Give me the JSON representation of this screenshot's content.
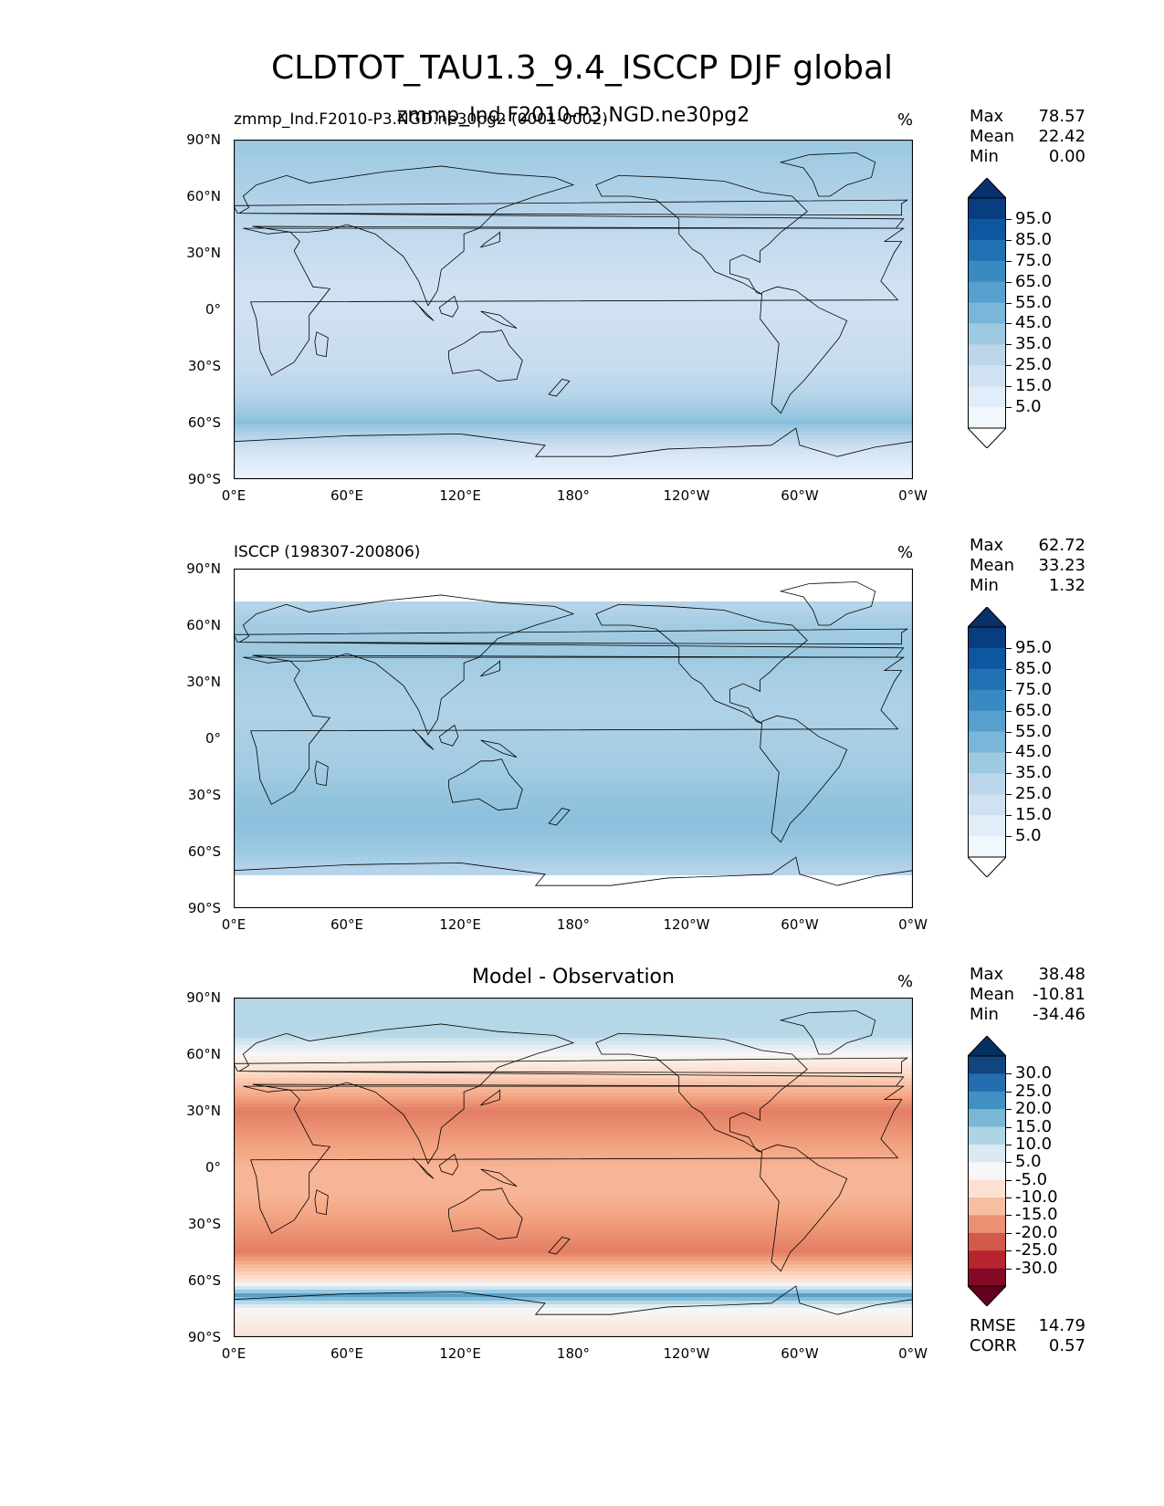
{
  "suptitle": "CLDTOT_TAU1.3_9.4_ISCCP DJF global",
  "lat_labels": [
    "90°N",
    "60°N",
    "30°N",
    "0°",
    "30°S",
    "60°S",
    "90°S"
  ],
  "lon_labels": [
    "0°E",
    "60°E",
    "120°E",
    "180°",
    "120°W",
    "60°W",
    "0°W"
  ],
  "panels": [
    {
      "title_left": "zmmp_Ind.F2010-P3.NGD.ne30pg2 (0001-0002)",
      "title_center": "zmmp_Ind.F2010-P3.NGD.ne30pg2",
      "units": "%",
      "stats": [
        {
          "label": "Max",
          "value": "78.57"
        },
        {
          "label": "Mean",
          "value": "22.42"
        },
        {
          "label": "Min",
          "value": "0.00"
        }
      ],
      "colorbar_labels": [
        "95.0",
        "85.0",
        "75.0",
        "65.0",
        "55.0",
        "45.0",
        "35.0",
        "25.0",
        "15.0",
        "5.0"
      ],
      "colormap": "Blues",
      "colors": {
        "low": "#f7fbff",
        "high": "#08306b"
      }
    },
    {
      "title_left": "ISCCP (198307-200806)",
      "units": "%",
      "stats": [
        {
          "label": "Max",
          "value": "62.72"
        },
        {
          "label": "Mean",
          "value": "33.23"
        },
        {
          "label": "Min",
          "value": "1.32"
        }
      ],
      "colorbar_labels": [
        "95.0",
        "85.0",
        "75.0",
        "65.0",
        "55.0",
        "45.0",
        "35.0",
        "25.0",
        "15.0",
        "5.0"
      ],
      "colormap": "Blues",
      "colors": {
        "low": "#f7fbff",
        "high": "#08306b"
      }
    },
    {
      "title_center": "Model - Observation",
      "units": "%",
      "stats": [
        {
          "label": "Max",
          "value": "38.48"
        },
        {
          "label": "Mean",
          "value": "-10.81"
        },
        {
          "label": "Min",
          "value": "-34.46"
        }
      ],
      "colorbar_labels": [
        "30.0",
        "25.0",
        "20.0",
        "15.0",
        "10.0",
        "5.0",
        "-5.0",
        "-10.0",
        "-15.0",
        "-20.0",
        "-25.0",
        "-30.0"
      ],
      "metrics": [
        {
          "label": "RMSE",
          "value": "14.79"
        },
        {
          "label": "CORR",
          "value": "0.57"
        }
      ],
      "colormap": "RdBu_r",
      "colors": {
        "neg": "#67001f",
        "zero": "#f7f7f7",
        "pos": "#053061"
      }
    }
  ],
  "chart_data": [
    {
      "type": "heatmap",
      "title": "zmmp_Ind.F2010-P3.NGD.ne30pg2",
      "variable": "CLDTOT_TAU1.3_9.4_ISCCP",
      "units": "%",
      "xlim": [
        0,
        360
      ],
      "ylim": [
        -90,
        90
      ],
      "levels": [
        5,
        15,
        25,
        35,
        45,
        55,
        65,
        75,
        85,
        95
      ],
      "zonal_mean_profile": {
        "lat": [
          -90,
          -75,
          -60,
          -45,
          -30,
          -15,
          0,
          15,
          30,
          45,
          60,
          75,
          85
        ],
        "value": [
          5,
          18,
          42,
          30,
          24,
          22,
          20,
          20,
          24,
          28,
          32,
          35,
          38
        ]
      },
      "max": 78.57,
      "mean": 22.42,
      "min": 0.0
    },
    {
      "type": "heatmap",
      "title": "ISCCP (198307-200806)",
      "variable": "CLDTOT_TAU1.3_9.4_ISCCP",
      "units": "%",
      "xlim": [
        0,
        360
      ],
      "ylim": [
        -90,
        90
      ],
      "levels": [
        5,
        15,
        25,
        35,
        45,
        55,
        65,
        75,
        85,
        95
      ],
      "valid_lat_range": [
        -72,
        72
      ],
      "zonal_mean_profile": {
        "lat": [
          -70,
          -60,
          -45,
          -30,
          -15,
          0,
          15,
          30,
          45,
          60,
          70
        ],
        "value": [
          30,
          38,
          42,
          40,
          36,
          34,
          32,
          34,
          38,
          36,
          30
        ]
      },
      "max": 62.72,
      "mean": 33.23,
      "min": 1.32
    },
    {
      "type": "heatmap",
      "title": "Model - Observation",
      "units": "%",
      "xlim": [
        0,
        360
      ],
      "ylim": [
        -90,
        90
      ],
      "levels": [
        -30,
        -25,
        -20,
        -15,
        -10,
        -5,
        5,
        10,
        15,
        20,
        25,
        30
      ],
      "zonal_mean_profile": {
        "lat": [
          -90,
          -75,
          -68,
          -60,
          -45,
          -30,
          -15,
          0,
          15,
          30,
          45,
          60,
          70
        ],
        "value": [
          -5,
          0,
          20,
          -5,
          -18,
          -15,
          -12,
          -12,
          -15,
          -18,
          -10,
          0,
          10
        ]
      },
      "max": 38.48,
      "mean": -10.81,
      "min": -34.46,
      "rmse": 14.79,
      "corr": 0.57
    }
  ]
}
